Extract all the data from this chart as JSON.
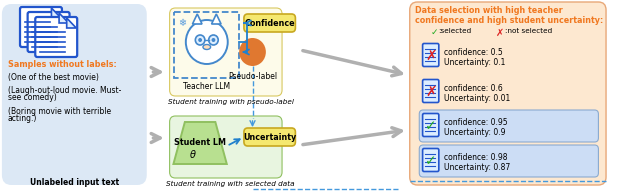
{
  "fig_width": 6.4,
  "fig_height": 1.93,
  "dpi": 100,
  "bg_color": "#ffffff",
  "left_box_bg": "#dce8f5",
  "left_box_border": "#b0c8e0",
  "teacher_box_border": "#4488cc",
  "teacher_box_bg": "#fffff0",
  "middle_upper_bg": "#fdfbea",
  "middle_upper_border": "#d8c860",
  "middle_lower_bg": "#e8f5e0",
  "middle_lower_border": "#90c060",
  "confidence_box_bg": "#f5e870",
  "confidence_box_border": "#c8a820",
  "uncertainty_box_bg": "#f5e870",
  "uncertainty_box_border": "#c8a820",
  "right_box_bg": "#fde8d0",
  "right_box_border": "#e8a878",
  "selected_highlight_bg": "#ccddf5",
  "selected_highlight_border": "#8aaad0",
  "orange_text": "#f07820",
  "doc_blue": "#2255cc",
  "doc_light": "#ddeeff",
  "arrow_gray": "#b0b0b0",
  "arrow_blue": "#2080cc",
  "arrow_dashed": "#4499dd",
  "green_check": "#22aa22",
  "red_cross": "#dd2222",
  "left_panel_header": "Samples without labels:",
  "left_panel_line1": "(One of the best movie)",
  "left_panel_line2a": "(Laugh-out-loud movie. Must-",
  "left_panel_line2b": "see comedy)",
  "left_panel_line3a": "(Boring movie with terrible",
  "left_panel_line3b": "acting.)",
  "left_panel_footer": "Unlabeled input text",
  "teacher_label": "Teacher LLM",
  "pseudo_label": "Pseudo-label",
  "confidence_label": "Confidence",
  "uncertainty_label": "Uncertainty",
  "student_label": "Student LM",
  "student_theta": "θ",
  "pseudo_train_text": "Student training with pseudo-label",
  "selected_train_text": "Student training with selected data",
  "right_title_line1": "Data selection with high teacher",
  "right_title_line2": "confidence and high student uncertainty:",
  "items": [
    {
      "confidence": "0.5",
      "uncertainty": "0.1",
      "selected": false
    },
    {
      "confidence": "0.6",
      "uncertainty": "0.01",
      "selected": false
    },
    {
      "confidence": "0.95",
      "uncertainty": "0.9",
      "selected": true
    },
    {
      "confidence": "0.98",
      "uncertainty": "0.87",
      "selected": true
    }
  ]
}
